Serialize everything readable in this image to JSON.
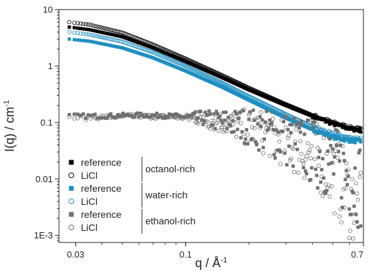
{
  "chart_data": {
    "type": "scatter",
    "title": "",
    "xlabel": "q / Å",
    "xlabel_sup": "-1",
    "ylabel": "I(q) / cm",
    "ylabel_sup": "-1",
    "xscale": "log",
    "yscale": "log",
    "xlim": [
      0.025,
      0.7
    ],
    "ylim": [
      0.00075,
      10
    ],
    "x_ticks": [
      {
        "value": 0.03,
        "label": "0.03"
      },
      {
        "value": 0.1,
        "label": "0.1"
      },
      {
        "value": 0.7,
        "label": "0.7"
      }
    ],
    "y_ticks": [
      {
        "value": 0.001,
        "label": "1E-3"
      },
      {
        "value": 0.01,
        "label": "0.01"
      },
      {
        "value": 0.1,
        "label": "0.1"
      },
      {
        "value": 1,
        "label": "1"
      },
      {
        "value": 10,
        "label": "10"
      }
    ],
    "legend_position": "bottom-left",
    "series": [
      {
        "name": "reference",
        "group": "octanol-rich",
        "color": "#000000",
        "marker": "filled-square",
        "points": [
          [
            0.028,
            4.9
          ],
          [
            0.035,
            4.4
          ],
          [
            0.05,
            3.3
          ],
          [
            0.07,
            2.1
          ],
          [
            0.1,
            1.2
          ],
          [
            0.15,
            0.62
          ],
          [
            0.2,
            0.38
          ],
          [
            0.3,
            0.2
          ],
          [
            0.4,
            0.13
          ],
          [
            0.5,
            0.095
          ],
          [
            0.6,
            0.078
          ],
          [
            0.68,
            0.072
          ]
        ]
      },
      {
        "name": "LiCl",
        "group": "octanol-rich",
        "color": "#000000",
        "marker": "open-circle",
        "points": [
          [
            0.028,
            6.0
          ],
          [
            0.035,
            5.4
          ],
          [
            0.05,
            3.9
          ],
          [
            0.07,
            2.4
          ],
          [
            0.1,
            1.35
          ],
          [
            0.15,
            0.68
          ],
          [
            0.2,
            0.41
          ],
          [
            0.3,
            0.21
          ],
          [
            0.4,
            0.135
          ],
          [
            0.5,
            0.1
          ],
          [
            0.6,
            0.082
          ],
          [
            0.68,
            0.075
          ]
        ]
      },
      {
        "name": "reference",
        "group": "water-rich",
        "color": "#1f8fc0",
        "marker": "filled-square",
        "points": [
          [
            0.028,
            3.0
          ],
          [
            0.035,
            2.75
          ],
          [
            0.05,
            2.1
          ],
          [
            0.07,
            1.4
          ],
          [
            0.1,
            0.82
          ],
          [
            0.15,
            0.42
          ],
          [
            0.2,
            0.25
          ],
          [
            0.3,
            0.12
          ],
          [
            0.4,
            0.075
          ],
          [
            0.5,
            0.055
          ],
          [
            0.6,
            0.048
          ],
          [
            0.68,
            0.046
          ]
        ]
      },
      {
        "name": "LiCl",
        "group": "water-rich",
        "color": "#1f8fc0",
        "marker": "open-circle",
        "points": [
          [
            0.028,
            4.0
          ],
          [
            0.035,
            3.6
          ],
          [
            0.05,
            2.7
          ],
          [
            0.07,
            1.75
          ],
          [
            0.1,
            1.0
          ],
          [
            0.15,
            0.5
          ],
          [
            0.2,
            0.29
          ],
          [
            0.3,
            0.14
          ],
          [
            0.4,
            0.085
          ],
          [
            0.5,
            0.062
          ],
          [
            0.6,
            0.054
          ],
          [
            0.68,
            0.052
          ]
        ]
      },
      {
        "name": "reference",
        "group": "ethanol-rich",
        "color": "#707070",
        "marker": "filled-square",
        "points": [
          [
            0.028,
            0.13
          ],
          [
            0.04,
            0.13
          ],
          [
            0.06,
            0.135
          ],
          [
            0.09,
            0.13
          ],
          [
            0.12,
            0.12
          ],
          [
            0.16,
            0.1
          ],
          [
            0.2,
            0.085
          ],
          [
            0.25,
            0.065
          ],
          [
            0.3,
            0.05
          ],
          [
            0.35,
            0.038
          ],
          [
            0.4,
            0.03
          ],
          [
            0.45,
            0.024
          ],
          [
            0.5,
            0.018
          ],
          [
            0.55,
            0.014
          ],
          [
            0.6,
            0.011
          ],
          [
            0.65,
            0.009
          ],
          [
            0.68,
            0.008
          ]
        ]
      },
      {
        "name": "LiCl",
        "group": "ethanol-rich",
        "color": "#707070",
        "marker": "open-circle",
        "points": [
          [
            0.028,
            0.12
          ],
          [
            0.04,
            0.125
          ],
          [
            0.06,
            0.13
          ],
          [
            0.09,
            0.125
          ],
          [
            0.12,
            0.115
          ],
          [
            0.16,
            0.097
          ],
          [
            0.2,
            0.08
          ],
          [
            0.25,
            0.062
          ],
          [
            0.3,
            0.047
          ],
          [
            0.35,
            0.035
          ],
          [
            0.4,
            0.027
          ],
          [
            0.45,
            0.02
          ],
          [
            0.5,
            0.013
          ],
          [
            0.55,
            0.008
          ],
          [
            0.6,
            0.005
          ],
          [
            0.65,
            0.003
          ],
          [
            0.68,
            0.002
          ]
        ]
      }
    ],
    "legend_groups": [
      {
        "label": "octanol-rich",
        "entries": [
          "reference",
          "LiCl"
        ]
      },
      {
        "label": "water-rich",
        "entries": [
          "reference",
          "LiCl"
        ]
      },
      {
        "label": "ethanol-rich",
        "entries": [
          "reference",
          "LiCl"
        ]
      }
    ]
  }
}
